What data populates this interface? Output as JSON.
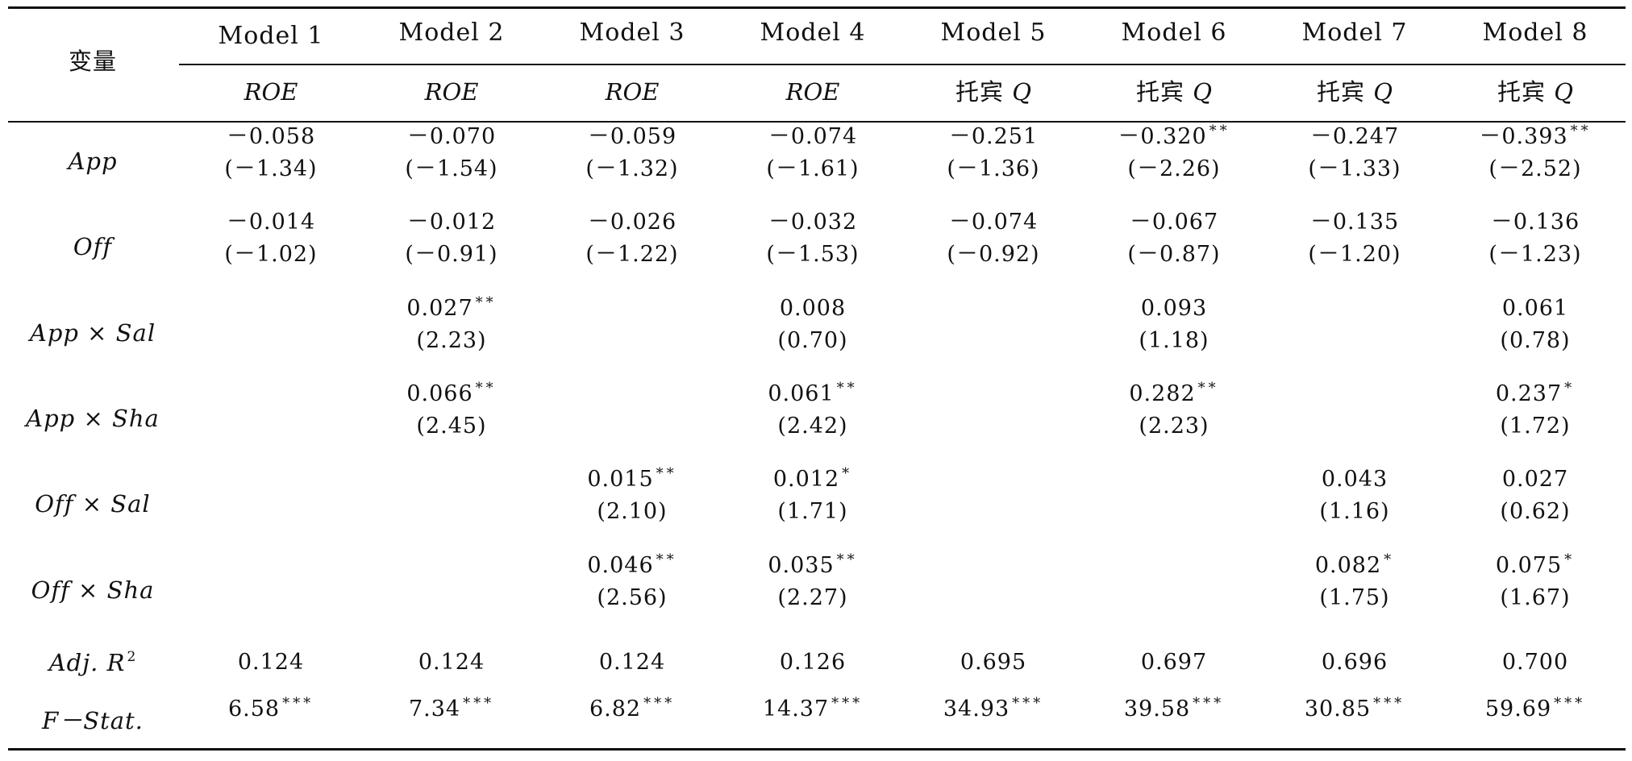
{
  "table": {
    "corner_label": "变量",
    "models": [
      "Model 1",
      "Model 2",
      "Model 3",
      "Model 4",
      "Model 5",
      "Model 6",
      "Model 7",
      "Model 8"
    ],
    "dependents": [
      {
        "prefix": "",
        "var": "ROE"
      },
      {
        "prefix": "",
        "var": "ROE"
      },
      {
        "prefix": "",
        "var": "ROE"
      },
      {
        "prefix": "",
        "var": "ROE"
      },
      {
        "prefix": "托宾 ",
        "var": "Q"
      },
      {
        "prefix": "托宾 ",
        "var": "Q"
      },
      {
        "prefix": "托宾 ",
        "var": "Q"
      },
      {
        "prefix": "托宾 ",
        "var": "Q"
      }
    ],
    "rows": [
      {
        "name": "App",
        "coef": [
          "－0.058",
          "－0.070",
          "－0.059",
          "－0.074",
          "－0.251",
          "－0.320",
          "－0.247",
          "－0.393"
        ],
        "stars": [
          "",
          "",
          "",
          "",
          "",
          "**",
          "",
          "**"
        ],
        "tstat": [
          "(－1.34)",
          "(－1.54)",
          "(－1.32)",
          "(－1.61)",
          "(－1.36)",
          "(－2.26)",
          "(－1.33)",
          "(－2.52)"
        ]
      },
      {
        "name": "Off",
        "coef": [
          "－0.014",
          "－0.012",
          "－0.026",
          "－0.032",
          "－0.074",
          "－0.067",
          "－0.135",
          "－0.136"
        ],
        "stars": [
          "",
          "",
          "",
          "",
          "",
          "",
          "",
          ""
        ],
        "tstat": [
          "(－1.02)",
          "(－0.91)",
          "(－1.22)",
          "(－1.53)",
          "(－0.92)",
          "(－0.87)",
          "(－1.20)",
          "(－1.23)"
        ]
      },
      {
        "name": "App × Sal",
        "coef": [
          "",
          "0.027",
          "",
          "0.008",
          "",
          "0.093",
          "",
          "0.061"
        ],
        "stars": [
          "",
          "**",
          "",
          "",
          "",
          "",
          "",
          ""
        ],
        "tstat": [
          "",
          "(2.23)",
          "",
          "(0.70)",
          "",
          "(1.18)",
          "",
          "(0.78)"
        ]
      },
      {
        "name": "App × Sha",
        "coef": [
          "",
          "0.066",
          "",
          "0.061",
          "",
          "0.282",
          "",
          "0.237"
        ],
        "stars": [
          "",
          "**",
          "",
          "**",
          "",
          "**",
          "",
          "*"
        ],
        "tstat": [
          "",
          "(2.45)",
          "",
          "(2.42)",
          "",
          "(2.23)",
          "",
          "(1.72)"
        ]
      },
      {
        "name": "Off × Sal",
        "coef": [
          "",
          "",
          "0.015",
          "0.012",
          "",
          "",
          "0.043",
          "0.027"
        ],
        "stars": [
          "",
          "",
          "**",
          "*",
          "",
          "",
          "",
          ""
        ],
        "tstat": [
          "",
          "",
          "(2.10)",
          "(1.71)",
          "",
          "",
          "(1.16)",
          "(0.62)"
        ]
      },
      {
        "name": "Off × Sha",
        "coef": [
          "",
          "",
          "0.046",
          "0.035",
          "",
          "",
          "0.082",
          "0.075"
        ],
        "stars": [
          "",
          "",
          "**",
          "**",
          "",
          "",
          "*",
          "*"
        ],
        "tstat": [
          "",
          "",
          "(2.56)",
          "(2.27)",
          "",
          "",
          "(1.75)",
          "(1.67)"
        ]
      }
    ],
    "adj_r2": {
      "name": "Adj. R",
      "sup": "2",
      "values": [
        "0.124",
        "0.124",
        "0.124",
        "0.126",
        "0.695",
        "0.697",
        "0.696",
        "0.700"
      ]
    },
    "fstat": {
      "name": "F－Stat.",
      "values": [
        "6.58",
        "7.34",
        "6.82",
        "14.37",
        "34.93",
        "39.58",
        "30.85",
        "59.69"
      ],
      "stars": [
        "***",
        "***",
        "***",
        "***",
        "***",
        "***",
        "***",
        "***"
      ]
    }
  }
}
